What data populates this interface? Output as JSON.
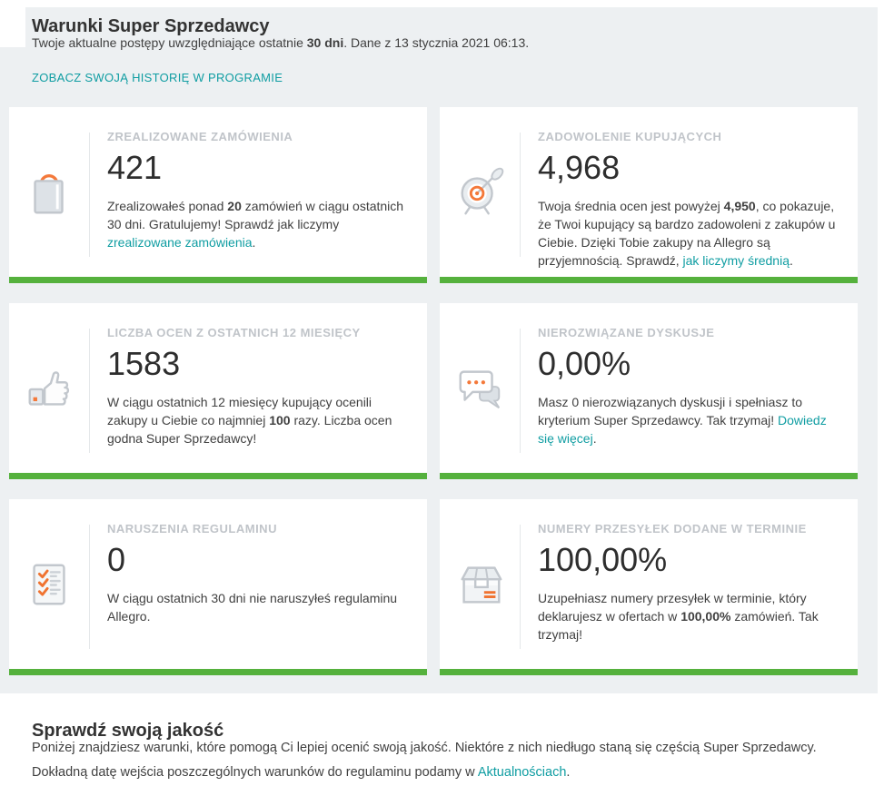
{
  "colors": {
    "background_gray": "#edf0f2",
    "accent_green": "#55b13d",
    "link_teal": "#0f9da2",
    "icon_orange": "#f4793a",
    "label_gray": "#c0c4c9"
  },
  "header": {
    "title": "Warunki Super Sprzedawcy",
    "subtitle_segments": [
      {
        "t": "Twoje aktualne postępy uwzględniające ostatnie ",
        "s": "n"
      },
      {
        "t": "30 dni",
        "s": "b"
      },
      {
        "t": ". Dane z 13 stycznia 2021 06:13.",
        "s": "n"
      }
    ],
    "history_link": "ZOBACZ SWOJĄ HISTORIĘ W PROGRAMIE"
  },
  "cards": [
    {
      "icon": "shopping-bag-icon",
      "label": "ZREALIZOWANE ZAMÓWIENIA",
      "value": "421",
      "text_segments": [
        {
          "t": "Zrealizowałeś ponad ",
          "s": "n"
        },
        {
          "t": "20",
          "s": "b"
        },
        {
          "t": " zamówień w ciągu ostatnich 30 dni. Gratulujemy! Sprawdź jak liczymy ",
          "s": "n"
        },
        {
          "t": "zrealizowane zamówienia",
          "s": "l"
        },
        {
          "t": ".",
          "s": "n"
        }
      ]
    },
    {
      "icon": "target-icon",
      "label": "ZADOWOLENIE KUPUJĄCYCH",
      "value": "4,968",
      "text_segments": [
        {
          "t": "Twoja średnia ocen jest powyżej ",
          "s": "n"
        },
        {
          "t": "4,950",
          "s": "b"
        },
        {
          "t": ", co pokazuje, że Twoi kupujący są bardzo zadowoleni z zakupów u Ciebie. Dzięki Tobie zakupy na Allegro są przyjemnością. Sprawdź, ",
          "s": "n"
        },
        {
          "t": "jak liczymy średnią",
          "s": "l"
        },
        {
          "t": ".",
          "s": "n"
        }
      ]
    },
    {
      "icon": "thumb-up-icon",
      "label": "LICZBA OCEN Z OSTATNICH 12 MIESIĘCY",
      "value": "1583",
      "text_segments": [
        {
          "t": "W ciągu ostatnich 12 miesięcy kupujący ocenili zakupy u Ciebie co najmniej ",
          "s": "n"
        },
        {
          "t": "100",
          "s": "b"
        },
        {
          "t": " razy. Liczba ocen godna Super Sprzedawcy!",
          "s": "n"
        }
      ]
    },
    {
      "icon": "chat-bubbles-icon",
      "label": "NIEROZWIĄZANE DYSKUSJE",
      "value": "0,00%",
      "text_segments": [
        {
          "t": "Masz 0 nierozwiązanych dyskusji i spełniasz to kryterium Super Sprzedawcy. Tak trzymaj! ",
          "s": "n"
        },
        {
          "t": "Dowiedz się więcej",
          "s": "l"
        },
        {
          "t": ".",
          "s": "n"
        }
      ]
    },
    {
      "icon": "checklist-icon",
      "label": "NARUSZENIA REGULAMINU",
      "value": "0",
      "text_segments": [
        {
          "t": "W ciągu ostatnich 30 dni nie naruszyłeś regulaminu Allegro.",
          "s": "n"
        }
      ]
    },
    {
      "icon": "package-box-icon",
      "label": "NUMERY PRZESYŁEK DODANE W TERMINIE",
      "value": "100,00%",
      "text_segments": [
        {
          "t": "Uzupełniasz numery przesyłek w terminie, który deklarujesz w ofertach w ",
          "s": "n"
        },
        {
          "t": "100,00%",
          "s": "b"
        },
        {
          "t": " zamówień. Tak trzymaj!",
          "s": "n"
        }
      ]
    }
  ],
  "footer": {
    "title": "Sprawdź swoją jakość",
    "text_segments": [
      {
        "t": "Poniżej znajdziesz warunki, które pomogą Ci lepiej ocenić swoją jakość. Niektóre z nich niedługo staną się częścią Super Sprzedawcy. Dokładną datę wejścia poszczególnych warunków do regulaminu podamy w ",
        "s": "n"
      },
      {
        "t": "Aktualnościach",
        "s": "l"
      },
      {
        "t": ".",
        "s": "n"
      }
    ]
  }
}
